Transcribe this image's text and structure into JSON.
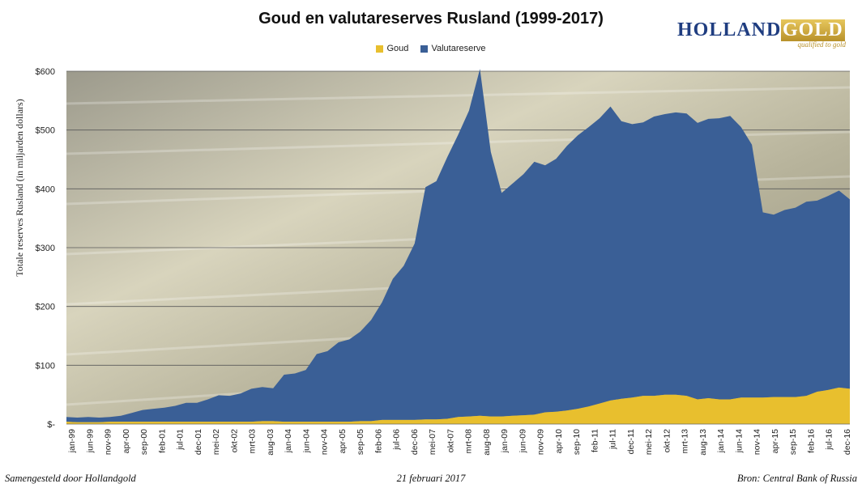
{
  "header": {
    "title": "Goud en valutareserves Rusland (1999-2017)"
  },
  "logo": {
    "word1": "HOLLAND",
    "word2": "GOLD",
    "tagline": "qualified to gold"
  },
  "colors": {
    "goud": "#e8bf2e",
    "valuta": "#3a5f96",
    "grid": "#5a5a5a"
  },
  "footer": {
    "left": "Samengesteld door Hollandgold",
    "center": "21 februari 2017",
    "right": "Bron: Central Bank of Russia"
  },
  "chart_data": {
    "type": "area",
    "title": "Goud en valutareserves Rusland (1999-2017)",
    "ylabel": "Totale reserves Rusland (in miljarden dollars)",
    "ylim": [
      0,
      600
    ],
    "yticks": [
      0,
      100,
      200,
      300,
      400,
      500,
      600
    ],
    "ytick_labels": [
      "$-",
      "$100",
      "$200",
      "$300",
      "$400",
      "$500",
      "$600"
    ],
    "grid": true,
    "stacked": true,
    "legend_position": "top",
    "x_tick_labels": [
      "jan-99",
      "jun-99",
      "nov-99",
      "apr-00",
      "sep-00",
      "feb-01",
      "jul-01",
      "dec-01",
      "mei-02",
      "okt-02",
      "mrt-03",
      "aug-03",
      "jan-04",
      "jun-04",
      "nov-04",
      "apr-05",
      "sep-05",
      "feb-06",
      "jul-06",
      "dec-06",
      "mei-07",
      "okt-07",
      "mrt-08",
      "aug-08",
      "jan-09",
      "jun-09",
      "nov-09",
      "apr-10",
      "sep-10",
      "feb-11",
      "jul-11",
      "dec-11",
      "mei-12",
      "okt-12",
      "mrt-13",
      "aug-13",
      "jan-14",
      "jun-14",
      "nov-14",
      "apr-15",
      "sep-15",
      "feb-16",
      "jul-16",
      "dec-16"
    ],
    "x": [
      "jan-99",
      "apr-99",
      "jul-99",
      "okt-99",
      "jan-00",
      "apr-00",
      "jul-00",
      "okt-00",
      "jan-01",
      "apr-01",
      "jul-01",
      "okt-01",
      "jan-02",
      "apr-02",
      "jul-02",
      "okt-02",
      "jan-03",
      "apr-03",
      "jul-03",
      "okt-03",
      "jan-04",
      "apr-04",
      "jul-04",
      "okt-04",
      "jan-05",
      "apr-05",
      "jul-05",
      "okt-05",
      "jan-06",
      "apr-06",
      "jul-06",
      "okt-06",
      "jan-07",
      "apr-07",
      "jul-07",
      "okt-07",
      "jan-08",
      "apr-08",
      "jul-08",
      "okt-08",
      "jan-09",
      "apr-09",
      "jul-09",
      "okt-09",
      "jan-10",
      "apr-10",
      "jul-10",
      "okt-10",
      "jan-11",
      "apr-11",
      "jul-11",
      "okt-11",
      "jan-12",
      "apr-12",
      "jul-12",
      "okt-12",
      "jan-13",
      "apr-13",
      "jul-13",
      "okt-13",
      "jan-14",
      "apr-14",
      "jul-14",
      "okt-14",
      "jan-15",
      "apr-15",
      "jul-15",
      "okt-15",
      "jan-16",
      "apr-16",
      "jul-16",
      "okt-16",
      "feb-17"
    ],
    "series": [
      {
        "name": "Goud",
        "values": [
          4,
          3,
          3,
          3,
          4,
          4,
          4,
          4,
          4,
          4,
          4,
          4,
          4,
          4,
          4,
          4,
          4,
          4,
          5,
          5,
          4,
          4,
          4,
          4,
          4,
          4,
          4,
          5,
          5,
          7,
          7,
          7,
          7,
          8,
          8,
          9,
          12,
          13,
          14,
          13,
          13,
          14,
          15,
          16,
          20,
          21,
          23,
          26,
          30,
          35,
          40,
          43,
          45,
          48,
          48,
          50,
          50,
          48,
          42,
          44,
          42,
          42,
          45,
          45,
          45,
          46,
          46,
          46,
          48,
          55,
          58,
          62,
          60
        ]
      },
      {
        "name": "Valutareserve",
        "values": [
          8,
          8,
          9,
          8,
          8,
          10,
          15,
          20,
          22,
          24,
          27,
          32,
          32,
          38,
          45,
          44,
          48,
          56,
          58,
          56,
          80,
          82,
          88,
          115,
          120,
          135,
          140,
          152,
          172,
          200,
          240,
          262,
          300,
          395,
          405,
          445,
          480,
          520,
          590,
          450,
          380,
          395,
          410,
          430,
          420,
          430,
          450,
          465,
          475,
          485,
          500,
          472,
          465,
          465,
          475,
          477,
          480,
          480,
          470,
          475,
          478,
          482,
          460,
          430,
          315,
          310,
          318,
          322,
          330,
          325,
          330,
          335,
          322
        ]
      }
    ]
  }
}
